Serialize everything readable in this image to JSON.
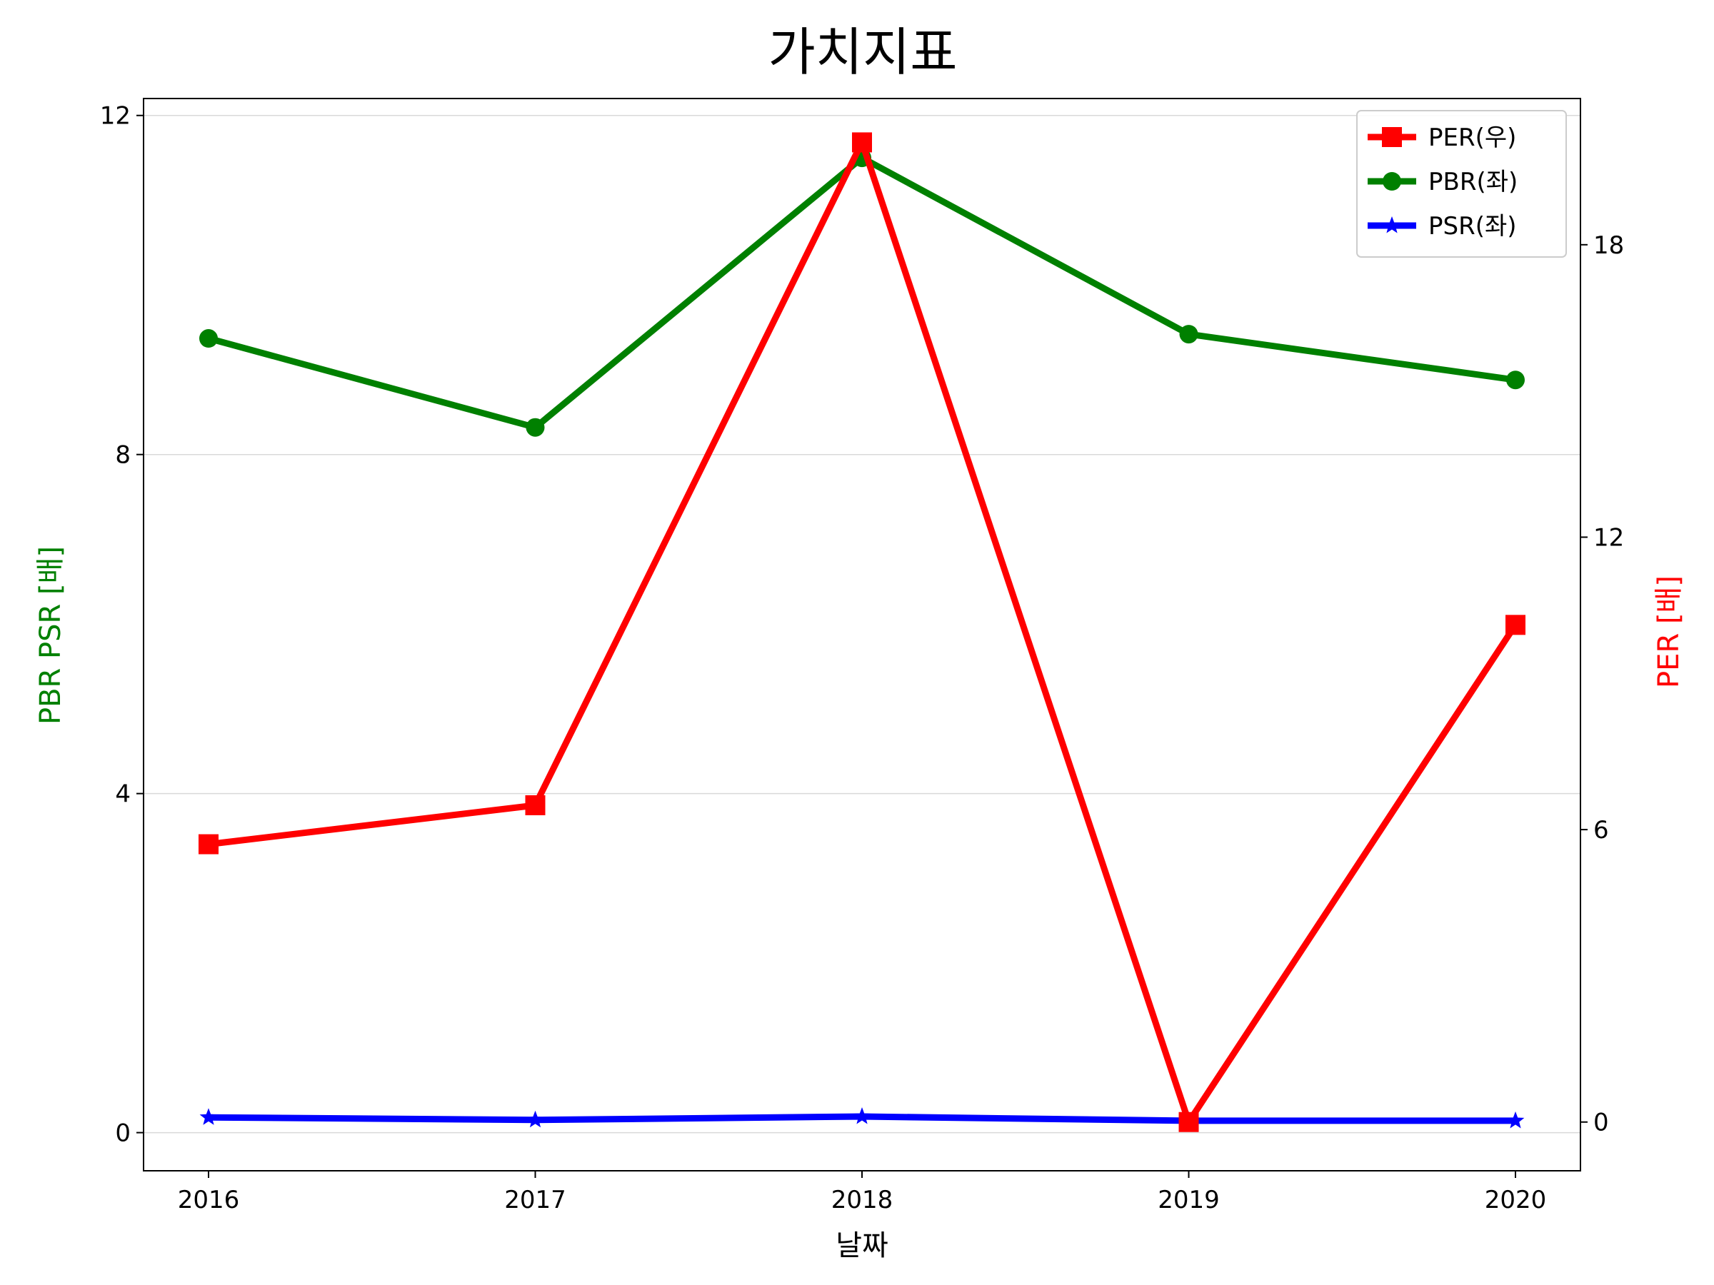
{
  "chart_data": {
    "type": "line",
    "title": "가치지표",
    "xlabel": "날짜",
    "ylabel_left": "PBR PSR [배]",
    "ylabel_right": "PER [배]",
    "categories": [
      "2016",
      "2017",
      "2018",
      "2019",
      "2020"
    ],
    "y_left": {
      "ticks": [
        "0",
        "4",
        "8",
        "12"
      ],
      "ylim": [
        -0.45,
        12.2
      ]
    },
    "y_right": {
      "ticks": [
        "0",
        "6",
        "12",
        "18"
      ],
      "ylim": [
        -1.0,
        21.0
      ]
    },
    "grid": "horizontal",
    "legend_position": "top-right",
    "series": [
      {
        "name": "PER(우)",
        "axis": "right",
        "color": "#ff0000",
        "marker": "square",
        "values": [
          5.7,
          6.5,
          20.1,
          0.0,
          10.2
        ]
      },
      {
        "name": "PBR(좌)",
        "axis": "left",
        "color": "#008000",
        "marker": "circle",
        "values": [
          9.37,
          8.32,
          11.5,
          9.42,
          8.88
        ]
      },
      {
        "name": "PSR(좌)",
        "axis": "left",
        "color": "#0000ff",
        "marker": "star",
        "values": [
          0.18,
          0.15,
          0.19,
          0.14,
          0.14
        ]
      }
    ]
  }
}
